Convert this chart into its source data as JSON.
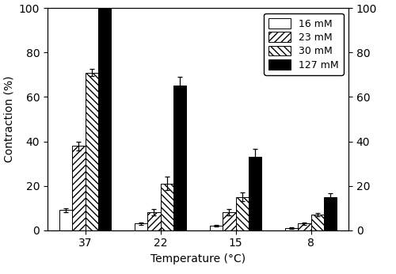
{
  "temperatures": [
    "37",
    "22",
    "15",
    "8"
  ],
  "series": {
    "16 mM": {
      "values": [
        9,
        3,
        2,
        1
      ],
      "errors": [
        1.0,
        0.5,
        0.5,
        0.3
      ],
      "hatch": "",
      "facecolor": "white",
      "edgecolor": "black"
    },
    "23 mM": {
      "values": [
        38,
        8,
        8,
        3
      ],
      "errors": [
        2.0,
        1.5,
        1.5,
        0.5
      ],
      "hatch": "////",
      "facecolor": "white",
      "edgecolor": "black"
    },
    "30 mM": {
      "values": [
        71,
        21,
        15,
        7
      ],
      "errors": [
        1.5,
        3.0,
        2.0,
        0.8
      ],
      "hatch": "\\\\\\\\",
      "facecolor": "white",
      "edgecolor": "black"
    },
    "127 mM": {
      "values": [
        100,
        65,
        33,
        15
      ],
      "errors": [
        0.5,
        4.0,
        3.5,
        1.5
      ],
      "hatch": "",
      "facecolor": "black",
      "edgecolor": "black"
    }
  },
  "ylabel": "Contraction (%)",
  "xlabel": "Temperature (°C)",
  "ylim": [
    0,
    100
  ],
  "yticks": [
    0,
    20,
    40,
    60,
    80,
    100
  ],
  "bar_width": 0.17,
  "legend_labels": [
    "16 mM",
    "23 mM",
    "30 mM",
    "127 mM"
  ],
  "background_color": "white",
  "figsize": [
    5.0,
    3.46
  ],
  "dpi": 100
}
